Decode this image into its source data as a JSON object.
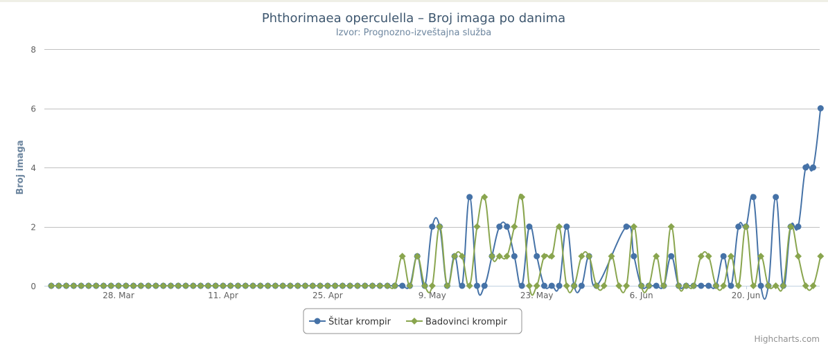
{
  "chart_data": {
    "type": "line",
    "title": "Phthorimaea operculella – Broj imaga po danima",
    "subtitle": "Izvor: Prognozno-izveštajna služba",
    "ylabel": "Broj imaga",
    "xlabel": "",
    "ylim": [
      0,
      8
    ],
    "yticks": [
      "0",
      "2",
      "4",
      "6",
      "8"
    ],
    "x_start": "2019-03-19",
    "x_end": "2019-06-30",
    "xticks": [
      {
        "label": "28. Mar",
        "date": "2019-03-28"
      },
      {
        "label": "11. Apr",
        "date": "2019-04-11"
      },
      {
        "label": "25. Apr",
        "date": "2019-04-25"
      },
      {
        "label": "9. May",
        "date": "2019-05-09"
      },
      {
        "label": "23. May",
        "date": "2019-05-23"
      },
      {
        "label": "6. Jun",
        "date": "2019-06-06"
      },
      {
        "label": "20. Jun",
        "date": "2019-06-20"
      }
    ],
    "grid": true,
    "legend_position": "bottom-center",
    "series": [
      {
        "name": "Štitar krompir",
        "color": "#4572a7",
        "marker": "circle",
        "points": [
          [
            "2019-03-19",
            0
          ],
          [
            "2019-03-20",
            0
          ],
          [
            "2019-03-21",
            0
          ],
          [
            "2019-03-22",
            0
          ],
          [
            "2019-03-23",
            0
          ],
          [
            "2019-03-24",
            0
          ],
          [
            "2019-03-25",
            0
          ],
          [
            "2019-03-26",
            0
          ],
          [
            "2019-03-27",
            0
          ],
          [
            "2019-03-28",
            0
          ],
          [
            "2019-03-29",
            0
          ],
          [
            "2019-03-30",
            0
          ],
          [
            "2019-03-31",
            0
          ],
          [
            "2019-04-01",
            0
          ],
          [
            "2019-04-02",
            0
          ],
          [
            "2019-04-03",
            0
          ],
          [
            "2019-04-04",
            0
          ],
          [
            "2019-04-05",
            0
          ],
          [
            "2019-04-06",
            0
          ],
          [
            "2019-04-07",
            0
          ],
          [
            "2019-04-08",
            0
          ],
          [
            "2019-04-09",
            0
          ],
          [
            "2019-04-10",
            0
          ],
          [
            "2019-04-11",
            0
          ],
          [
            "2019-04-12",
            0
          ],
          [
            "2019-04-13",
            0
          ],
          [
            "2019-04-14",
            0
          ],
          [
            "2019-04-15",
            0
          ],
          [
            "2019-04-16",
            0
          ],
          [
            "2019-04-17",
            0
          ],
          [
            "2019-04-18",
            0
          ],
          [
            "2019-04-19",
            0
          ],
          [
            "2019-04-20",
            0
          ],
          [
            "2019-04-21",
            0
          ],
          [
            "2019-04-22",
            0
          ],
          [
            "2019-04-23",
            0
          ],
          [
            "2019-04-24",
            0
          ],
          [
            "2019-04-25",
            0
          ],
          [
            "2019-04-26",
            0
          ],
          [
            "2019-04-27",
            0
          ],
          [
            "2019-04-28",
            0
          ],
          [
            "2019-04-29",
            0
          ],
          [
            "2019-04-30",
            0
          ],
          [
            "2019-05-01",
            0
          ],
          [
            "2019-05-02",
            0
          ],
          [
            "2019-05-03",
            0
          ],
          [
            "2019-05-04",
            0
          ],
          [
            "2019-05-05",
            0
          ],
          [
            "2019-05-06",
            0
          ],
          [
            "2019-05-07",
            1
          ],
          [
            "2019-05-08",
            0
          ],
          [
            "2019-05-09",
            2
          ],
          [
            "2019-05-10",
            2
          ],
          [
            "2019-05-11",
            0
          ],
          [
            "2019-05-12",
            1
          ],
          [
            "2019-05-13",
            0
          ],
          [
            "2019-05-14",
            3
          ],
          [
            "2019-05-15",
            0
          ],
          [
            "2019-05-16",
            0
          ],
          [
            "2019-05-17",
            1
          ],
          [
            "2019-05-18",
            2
          ],
          [
            "2019-05-19",
            2
          ],
          [
            "2019-05-20",
            1
          ],
          [
            "2019-05-21",
            0
          ],
          [
            "2019-05-22",
            2
          ],
          [
            "2019-05-23",
            1
          ],
          [
            "2019-05-24",
            0
          ],
          [
            "2019-05-25",
            0
          ],
          [
            "2019-05-26",
            0
          ],
          [
            "2019-05-27",
            2
          ],
          [
            "2019-05-28",
            0
          ],
          [
            "2019-05-29",
            0
          ],
          [
            "2019-05-30",
            1
          ],
          [
            "2019-05-31",
            0
          ],
          [
            "2019-06-04",
            2
          ],
          [
            "2019-06-05",
            1
          ],
          [
            "2019-06-06",
            0
          ],
          [
            "2019-06-07",
            0
          ],
          [
            "2019-06-08",
            0
          ],
          [
            "2019-06-09",
            0
          ],
          [
            "2019-06-10",
            1
          ],
          [
            "2019-06-11",
            0
          ],
          [
            "2019-06-12",
            0
          ],
          [
            "2019-06-13",
            0
          ],
          [
            "2019-06-14",
            0
          ],
          [
            "2019-06-15",
            0
          ],
          [
            "2019-06-16",
            0
          ],
          [
            "2019-06-17",
            1
          ],
          [
            "2019-06-18",
            0
          ],
          [
            "2019-06-19",
            2
          ],
          [
            "2019-06-20",
            2
          ],
          [
            "2019-06-21",
            3
          ],
          [
            "2019-06-22",
            0
          ],
          [
            "2019-06-23",
            0
          ],
          [
            "2019-06-24",
            3
          ],
          [
            "2019-06-25",
            0
          ],
          [
            "2019-06-26",
            2
          ],
          [
            "2019-06-27",
            2
          ],
          [
            "2019-06-28",
            4
          ],
          [
            "2019-06-29",
            4
          ],
          [
            "2019-06-30",
            6
          ]
        ]
      },
      {
        "name": "Badovinci krompir",
        "color": "#89a54e",
        "marker": "diamond",
        "points": [
          [
            "2019-03-19",
            0
          ],
          [
            "2019-03-20",
            0
          ],
          [
            "2019-03-21",
            0
          ],
          [
            "2019-03-22",
            0
          ],
          [
            "2019-03-23",
            0
          ],
          [
            "2019-03-24",
            0
          ],
          [
            "2019-03-25",
            0
          ],
          [
            "2019-03-26",
            0
          ],
          [
            "2019-03-27",
            0
          ],
          [
            "2019-03-28",
            0
          ],
          [
            "2019-03-29",
            0
          ],
          [
            "2019-03-30",
            0
          ],
          [
            "2019-03-31",
            0
          ],
          [
            "2019-04-01",
            0
          ],
          [
            "2019-04-02",
            0
          ],
          [
            "2019-04-03",
            0
          ],
          [
            "2019-04-04",
            0
          ],
          [
            "2019-04-05",
            0
          ],
          [
            "2019-04-06",
            0
          ],
          [
            "2019-04-07",
            0
          ],
          [
            "2019-04-08",
            0
          ],
          [
            "2019-04-09",
            0
          ],
          [
            "2019-04-10",
            0
          ],
          [
            "2019-04-11",
            0
          ],
          [
            "2019-04-12",
            0
          ],
          [
            "2019-04-13",
            0
          ],
          [
            "2019-04-14",
            0
          ],
          [
            "2019-04-15",
            0
          ],
          [
            "2019-04-16",
            0
          ],
          [
            "2019-04-17",
            0
          ],
          [
            "2019-04-18",
            0
          ],
          [
            "2019-04-19",
            0
          ],
          [
            "2019-04-20",
            0
          ],
          [
            "2019-04-21",
            0
          ],
          [
            "2019-04-22",
            0
          ],
          [
            "2019-04-23",
            0
          ],
          [
            "2019-04-24",
            0
          ],
          [
            "2019-04-25",
            0
          ],
          [
            "2019-04-26",
            0
          ],
          [
            "2019-04-27",
            0
          ],
          [
            "2019-04-28",
            0
          ],
          [
            "2019-04-29",
            0
          ],
          [
            "2019-04-30",
            0
          ],
          [
            "2019-05-01",
            0
          ],
          [
            "2019-05-02",
            0
          ],
          [
            "2019-05-03",
            0
          ],
          [
            "2019-05-04",
            0
          ],
          [
            "2019-05-05",
            1
          ],
          [
            "2019-05-06",
            0
          ],
          [
            "2019-05-07",
            1
          ],
          [
            "2019-05-08",
            0
          ],
          [
            "2019-05-09",
            0
          ],
          [
            "2019-05-10",
            2
          ],
          [
            "2019-05-11",
            0
          ],
          [
            "2019-05-12",
            1
          ],
          [
            "2019-05-13",
            1
          ],
          [
            "2019-05-14",
            0
          ],
          [
            "2019-05-15",
            2
          ],
          [
            "2019-05-16",
            3
          ],
          [
            "2019-05-17",
            1
          ],
          [
            "2019-05-18",
            1
          ],
          [
            "2019-05-19",
            1
          ],
          [
            "2019-05-20",
            2
          ],
          [
            "2019-05-21",
            3
          ],
          [
            "2019-05-22",
            0
          ],
          [
            "2019-05-23",
            0
          ],
          [
            "2019-05-24",
            1
          ],
          [
            "2019-05-25",
            1
          ],
          [
            "2019-05-26",
            2
          ],
          [
            "2019-05-27",
            0
          ],
          [
            "2019-05-28",
            0
          ],
          [
            "2019-05-29",
            1
          ],
          [
            "2019-05-30",
            1
          ],
          [
            "2019-05-31",
            0
          ],
          [
            "2019-06-01",
            0
          ],
          [
            "2019-06-02",
            1
          ],
          [
            "2019-06-03",
            0
          ],
          [
            "2019-06-04",
            0
          ],
          [
            "2019-06-05",
            2
          ],
          [
            "2019-06-06",
            0
          ],
          [
            "2019-06-07",
            0
          ],
          [
            "2019-06-08",
            1
          ],
          [
            "2019-06-09",
            0
          ],
          [
            "2019-06-10",
            2
          ],
          [
            "2019-06-11",
            0
          ],
          [
            "2019-06-12",
            0
          ],
          [
            "2019-06-13",
            0
          ],
          [
            "2019-06-14",
            1
          ],
          [
            "2019-06-15",
            1
          ],
          [
            "2019-06-16",
            0
          ],
          [
            "2019-06-17",
            0
          ],
          [
            "2019-06-18",
            1
          ],
          [
            "2019-06-19",
            0
          ],
          [
            "2019-06-20",
            2
          ],
          [
            "2019-06-21",
            0
          ],
          [
            "2019-06-22",
            1
          ],
          [
            "2019-06-23",
            0
          ],
          [
            "2019-06-24",
            0
          ],
          [
            "2019-06-25",
            0
          ],
          [
            "2019-06-26",
            2
          ],
          [
            "2019-06-27",
            1
          ],
          [
            "2019-06-28",
            0
          ],
          [
            "2019-06-29",
            0
          ],
          [
            "2019-06-30",
            1
          ]
        ]
      }
    ],
    "credits": "Highcharts.com"
  }
}
